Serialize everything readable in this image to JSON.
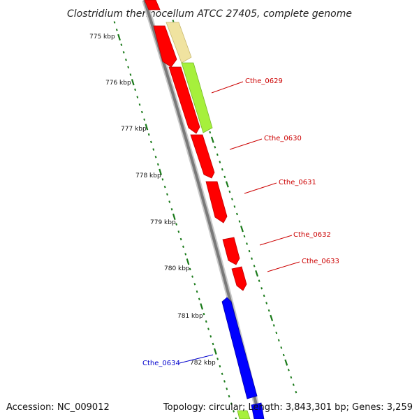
{
  "title": "Clostridium thermocellum ATCC 27405, complete genome",
  "footer": {
    "accession": "Accession: NC_009012",
    "summary": "Topology: circular; Length: 3,843,301 bp; Genes: 3,259"
  },
  "scale_labels": [
    "775 kbp",
    "776 kbp",
    "777 kbp",
    "778 kbp",
    "779 kbp",
    "780 kbp",
    "781 kbp",
    "782 kbp"
  ],
  "gene_labels": [
    "Cthe_0629",
    "Cthe_0630",
    "Cthe_0631",
    "Cthe_0632",
    "Cthe_0633",
    "Cthe_0634"
  ],
  "colors": {
    "forward_gene": "#ff0000",
    "reverse_gene": "#0000ff",
    "feature_light_green": "#a6f03c",
    "feature_tan": "#f0e3a0",
    "backbone": "#808080",
    "tick": "#1a7a1a",
    "forward_label": "#cc0000",
    "reverse_label": "#0000cc"
  }
}
